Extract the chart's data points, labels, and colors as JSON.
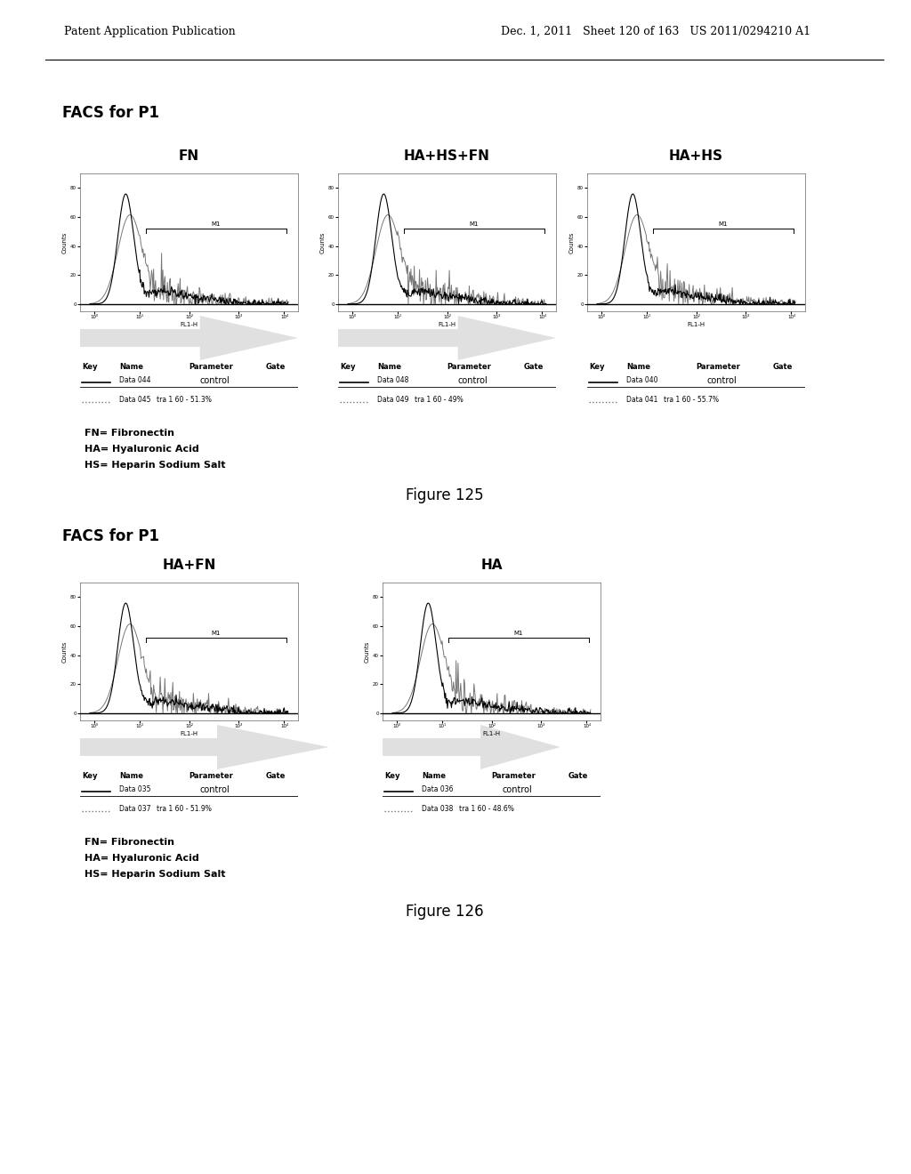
{
  "header_left": "Patent Application Publication",
  "header_right": "Dec. 1, 2011   Sheet 120 of 163   US 2011/0294210 A1",
  "fig125_title": "FACS for P1",
  "fig125_panels": [
    "FN",
    "HA+HS+FN",
    "HA+HS"
  ],
  "fig125_legends": [
    {
      "line1_key": "—",
      "line1_name": "Data 044",
      "line1_gate": "control",
      "line2_key": "~~~~~",
      "line2_name": "Data 045",
      "line2_param": "tra 1 60 - 51.3%"
    },
    {
      "line1_key": "—",
      "line1_name": "Data 048",
      "line1_gate": "control",
      "line2_key": "~~~~~",
      "line2_name": "Data 049",
      "line2_param": "tra 1 60 - 49%"
    },
    {
      "line1_key": "—",
      "line1_name": "Data 040",
      "line1_gate": "control",
      "line2_key": "~~~~~",
      "line2_name": "Data 041",
      "line2_param": "tra 1 60 - 55.7%"
    }
  ],
  "fig125_abbrev": [
    "FN= Fibronectin",
    "HA= Hyaluronic Acid",
    "HS= Heparin Sodium Salt"
  ],
  "fig125_caption": "Figure 125",
  "fig126_title": "FACS for P1",
  "fig126_panels": [
    "HA+FN",
    "HA"
  ],
  "fig126_legends": [
    {
      "line1_key": "—",
      "line1_name": "Data 035",
      "line1_gate": "control",
      "line2_key": "~~~~~",
      "line2_name": "Data 037",
      "line2_param": "tra 1 60 - 51.9%"
    },
    {
      "line1_key": "—",
      "line1_name": "Data 036",
      "line1_gate": "control",
      "line2_key": "~~~~~",
      "line2_name": "Data 038",
      "line2_param": "tra 1 60 - 48.6%"
    }
  ],
  "fig126_abbrev": [
    "FN= Fibronectin",
    "HA= Hyaluronic Acid",
    "HS= Heparin Sodium Salt"
  ],
  "fig126_caption": "Figure 126",
  "bg_color": "#ffffff"
}
